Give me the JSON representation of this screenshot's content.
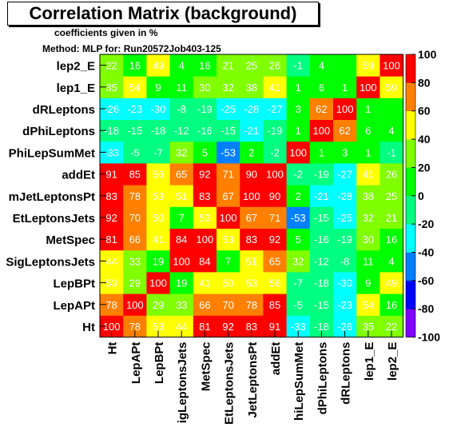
{
  "header": {
    "title": "Correlation Matrix (background)",
    "subtitle": "coefficients given in %",
    "method": "Method: MLP for: Run20572Job403-125"
  },
  "chart_data": {
    "type": "heatmap",
    "title": "Correlation Matrix (background)",
    "variables": [
      "Ht",
      "LepAPt",
      "LepBPt",
      "SigLeptonsJets",
      "MetSpec",
      "EtLeptonsJets",
      "SumJetLeptonsPt",
      "addEt",
      "dPhiLepSumMet",
      "dPhiLeptons",
      "dRLeptons",
      "lep1_E",
      "lep2_E"
    ],
    "y_labels_visible": [
      "Ht",
      "LepAPt",
      "LepBPt",
      "SigLeptonsJets",
      "MetSpec",
      "EtLeptonsJets",
      "mJetLeptonsPt",
      "addEt",
      "PhiLepSumMet",
      "dPhiLeptons",
      "dRLeptons",
      "lep1_E",
      "lep2_E"
    ],
    "x_labels_visible": [
      "Ht",
      "LepAPt",
      "LepBPt",
      "igLeptonsJets",
      "MetSpec",
      "EtLeptonsJets",
      "JetLeptonsPt",
      "addEt",
      "hiLepSumMet",
      "dPhiLeptons",
      "dRLeptons",
      "lep1_E",
      "lep2_E"
    ],
    "matrix": [
      [
        100,
        78,
        53,
        44,
        81,
        92,
        83,
        91,
        -33,
        -18,
        -26,
        35,
        22
      ],
      [
        78,
        100,
        29,
        33,
        66,
        70,
        78,
        85,
        -5,
        -15,
        -23,
        54,
        16
      ],
      [
        53,
        29,
        100,
        19,
        41,
        50,
        53,
        56,
        -7,
        -18,
        -30,
        9,
        49
      ],
      [
        44,
        33,
        19,
        100,
        84,
        7,
        51,
        65,
        32,
        -12,
        -8,
        11,
        4
      ],
      [
        81,
        66,
        41,
        84,
        100,
        53,
        83,
        92,
        5,
        -16,
        -19,
        30,
        16
      ],
      [
        92,
        70,
        50,
        7,
        53,
        100,
        67,
        71,
        -53,
        -15,
        -25,
        32,
        21
      ],
      [
        83,
        78,
        53,
        51,
        83,
        67,
        100,
        90,
        2,
        -21,
        -28,
        38,
        25
      ],
      [
        91,
        85,
        56,
        65,
        92,
        71,
        90,
        100,
        -2,
        -19,
        -27,
        41,
        26
      ],
      [
        -33,
        -5,
        -7,
        32,
        5,
        -53,
        2,
        -2,
        100,
        1,
        3,
        1,
        -1
      ],
      [
        -18,
        -15,
        -18,
        -12,
        -16,
        -15,
        -21,
        -19,
        1,
        100,
        62,
        6,
        4
      ],
      [
        -26,
        -23,
        -30,
        -8,
        -19,
        -25,
        -28,
        -27,
        3,
        62,
        100,
        1,
        ""
      ],
      [
        35,
        54,
        9,
        11,
        30,
        32,
        38,
        41,
        1,
        6,
        1,
        100,
        59
      ],
      [
        22,
        16,
        49,
        4,
        16,
        21,
        25,
        26,
        -1,
        4,
        "",
        59,
        100
      ]
    ],
    "zlim": [
      -100,
      100
    ],
    "colorbar_ticks": [
      100,
      80,
      60,
      40,
      20,
      0,
      -20,
      -40,
      -60,
      -80,
      -100
    ],
    "colormap": [
      "#7f00ff",
      "#0000ff",
      "#0080ff",
      "#00ffff",
      "#00ff80",
      "#00ff00",
      "#80ff00",
      "#ffff00",
      "#ff8000",
      "#ff0000"
    ]
  }
}
